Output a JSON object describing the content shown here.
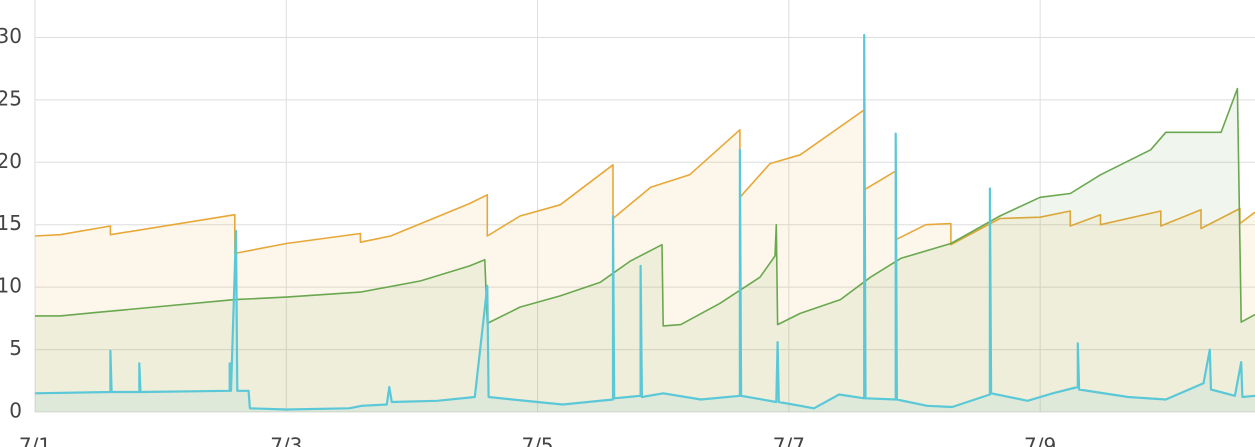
{
  "chart_data": {
    "type": "line",
    "grid": true,
    "area": true,
    "xlim": [
      0,
      9.71
    ],
    "ylim": [
      0,
      33
    ],
    "xticks": [
      {
        "value": 0,
        "label": "7/1"
      },
      {
        "value": 2,
        "label": "7/3"
      },
      {
        "value": 4,
        "label": "7/5"
      },
      {
        "value": 6,
        "label": "7/7"
      },
      {
        "value": 8,
        "label": "7/9"
      }
    ],
    "yticks": [
      0,
      5,
      10,
      15,
      20,
      25,
      30
    ],
    "series": [
      {
        "color": "#e8a838",
        "x": [
          0,
          0.2,
          0.6,
          0.6,
          1.59,
          1.59,
          2.0,
          2.59,
          2.59,
          2.83,
          3.46,
          3.6,
          3.6,
          3.86,
          4.18,
          4.6,
          4.6,
          4.9,
          5.21,
          5.61,
          5.61,
          5.85,
          6.09,
          6.6,
          6.6,
          6.85,
          6.85,
          7.09,
          7.29,
          7.29,
          7.68,
          8.0,
          8.24,
          8.24,
          8.48,
          8.48,
          8.96,
          8.96,
          9.28,
          9.28,
          9.59,
          9.59,
          9.71
        ],
        "values": [
          14.1,
          14.2,
          14.9,
          14.2,
          15.8,
          12.7,
          13.5,
          14.3,
          13.6,
          14.1,
          16.7,
          17.4,
          14.1,
          15.7,
          16.6,
          19.8,
          15.5,
          18.0,
          19.0,
          22.6,
          17.2,
          19.9,
          20.6,
          24.2,
          17.8,
          19.3,
          13.8,
          15.0,
          15.1,
          13.4,
          15.5,
          15.6,
          16.1,
          14.9,
          15.8,
          15.0,
          16.1,
          14.9,
          16.2,
          14.7,
          16.3,
          15.1,
          16.0
        ]
      },
      {
        "color": "#6aa84f",
        "x": [
          0,
          0.2,
          0.52,
          1.59,
          2.0,
          2.59,
          3.07,
          3.46,
          3.58,
          3.6,
          3.86,
          4.18,
          4.5,
          4.74,
          4.99,
          5.0,
          5.14,
          5.45,
          5.77,
          5.89,
          5.9,
          5.91,
          6.09,
          6.41,
          6.65,
          6.89,
          7.29,
          7.68,
          8.0,
          8.24,
          8.48,
          8.88,
          9.0,
          9.44,
          9.57,
          9.6,
          9.71
        ],
        "values": [
          7.7,
          7.7,
          8.0,
          9.0,
          9.2,
          9.6,
          10.5,
          11.7,
          12.2,
          7.1,
          8.4,
          9.3,
          10.4,
          12.1,
          13.4,
          6.9,
          7.0,
          8.7,
          10.8,
          12.5,
          15.0,
          7.0,
          7.9,
          9.0,
          10.8,
          12.3,
          13.5,
          15.7,
          17.2,
          17.5,
          19.0,
          21.0,
          22.4,
          22.4,
          25.9,
          7.2,
          7.8
        ]
      },
      {
        "color": "#5bc8d8",
        "x": [
          0,
          0.6,
          0.6,
          0.61,
          0.83,
          0.83,
          0.84,
          1.55,
          1.55,
          1.56,
          1.6,
          1.61,
          1.7,
          1.71,
          2.0,
          2.5,
          2.6,
          2.8,
          2.82,
          2.84,
          3.2,
          3.5,
          3.6,
          3.61,
          3.8,
          4.2,
          4.6,
          4.6,
          4.61,
          4.82,
          4.82,
          4.83,
          5.0,
          5.3,
          5.61,
          5.61,
          5.62,
          5.9,
          5.91,
          5.92,
          6.2,
          6.4,
          6.6,
          6.6,
          6.61,
          6.85,
          6.85,
          6.86,
          7.1,
          7.3,
          7.6,
          7.6,
          7.61,
          7.9,
          8.1,
          8.3,
          8.3,
          8.31,
          8.7,
          9.0,
          9.3,
          9.35,
          9.36,
          9.55,
          9.6,
          9.61,
          9.71
        ],
        "values": [
          1.5,
          1.6,
          4.9,
          1.6,
          1.6,
          3.9,
          1.6,
          1.7,
          3.9,
          1.7,
          14.5,
          1.7,
          1.7,
          0.3,
          0.2,
          0.3,
          0.5,
          0.6,
          2.0,
          0.8,
          0.9,
          1.2,
          10.1,
          1.2,
          1.0,
          0.6,
          1.0,
          15.7,
          1.1,
          1.3,
          11.7,
          1.2,
          1.5,
          1.0,
          1.3,
          21.0,
          1.3,
          0.8,
          5.6,
          0.8,
          0.3,
          1.4,
          1.1,
          30.2,
          1.1,
          1.0,
          22.3,
          1.0,
          0.5,
          0.4,
          1.4,
          17.9,
          1.5,
          0.9,
          1.5,
          2.0,
          5.5,
          1.8,
          1.2,
          1.0,
          2.3,
          5.0,
          1.8,
          1.3,
          4.0,
          1.2,
          1.3
        ]
      }
    ]
  }
}
